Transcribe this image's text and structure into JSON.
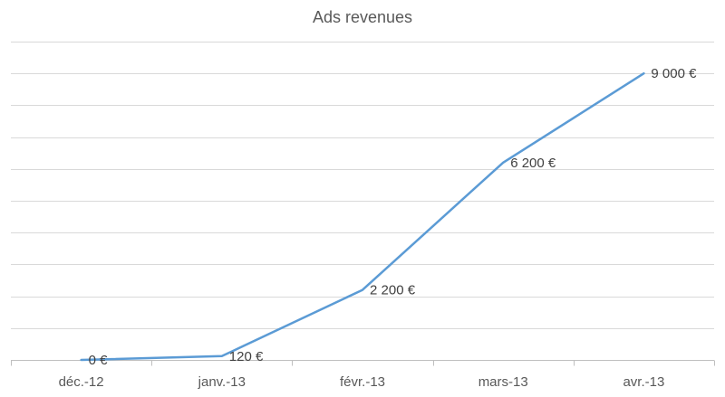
{
  "chart_data": {
    "type": "line",
    "title": "Ads revenues",
    "categories": [
      "déc.-12",
      "janv.-13",
      "févr.-13",
      "mars-13",
      "avr.-13"
    ],
    "series": [
      {
        "values": [
          0,
          120,
          2200,
          6200,
          9000
        ],
        "labels": [
          "0 €",
          "120 €",
          "2 200 €",
          "6 200 €",
          "9 000 €"
        ],
        "color": "#5B9BD5"
      }
    ],
    "ylim": [
      0,
      10000
    ],
    "y_gridline_step": 1000,
    "grid": true,
    "y_tick_labels_shown": false,
    "legend": "none"
  }
}
